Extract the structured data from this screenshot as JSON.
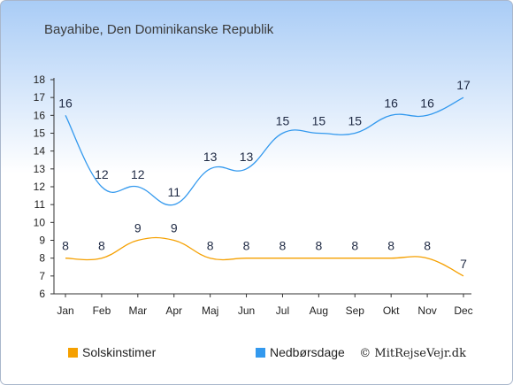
{
  "chart_data": {
    "type": "line",
    "title": "Bayahibe, Den Dominikanske Republik",
    "xlabel": "",
    "ylabel": "",
    "categories": [
      "Jan",
      "Feb",
      "Mar",
      "Apr",
      "Maj",
      "Jun",
      "Jul",
      "Aug",
      "Sep",
      "Okt",
      "Nov",
      "Dec"
    ],
    "ylim": [
      6,
      18
    ],
    "yticks": [
      6,
      7,
      8,
      9,
      10,
      11,
      12,
      13,
      14,
      15,
      16,
      17,
      18
    ],
    "grid": false,
    "legend_position": "bottom-left",
    "series": [
      {
        "name": "Solskinstimer",
        "color": "#f5a000",
        "values": [
          8,
          8,
          9,
          9,
          8,
          8,
          8,
          8,
          8,
          8,
          8,
          7
        ]
      },
      {
        "name": "Nedbørsdage",
        "color": "#3399ee",
        "values": [
          16,
          12,
          12,
          11,
          13,
          13,
          15,
          15,
          15,
          16,
          16,
          17
        ]
      }
    ]
  },
  "credit": "© MitRejseVejr.dk",
  "colors": {
    "background_top": "#a9ccf6",
    "background_bottom": "#ffffff"
  }
}
